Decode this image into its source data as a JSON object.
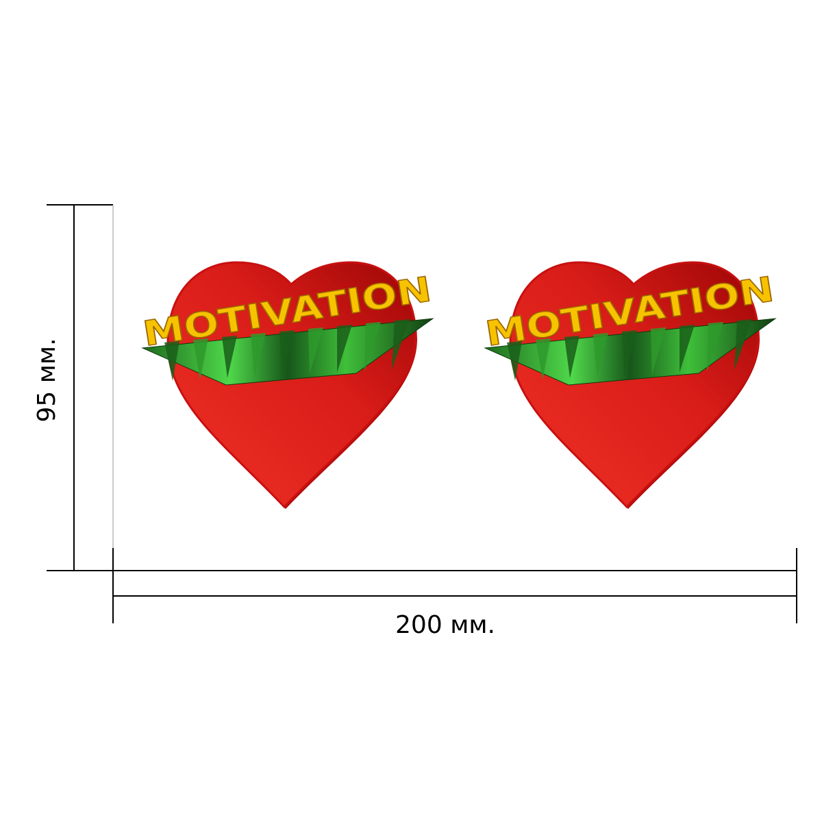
{
  "stickers": [
    {
      "text": "MOTIVATION"
    },
    {
      "text": "MOTIVATION"
    }
  ],
  "dimensions": {
    "height": "95 мм.",
    "width": "200 мм."
  }
}
